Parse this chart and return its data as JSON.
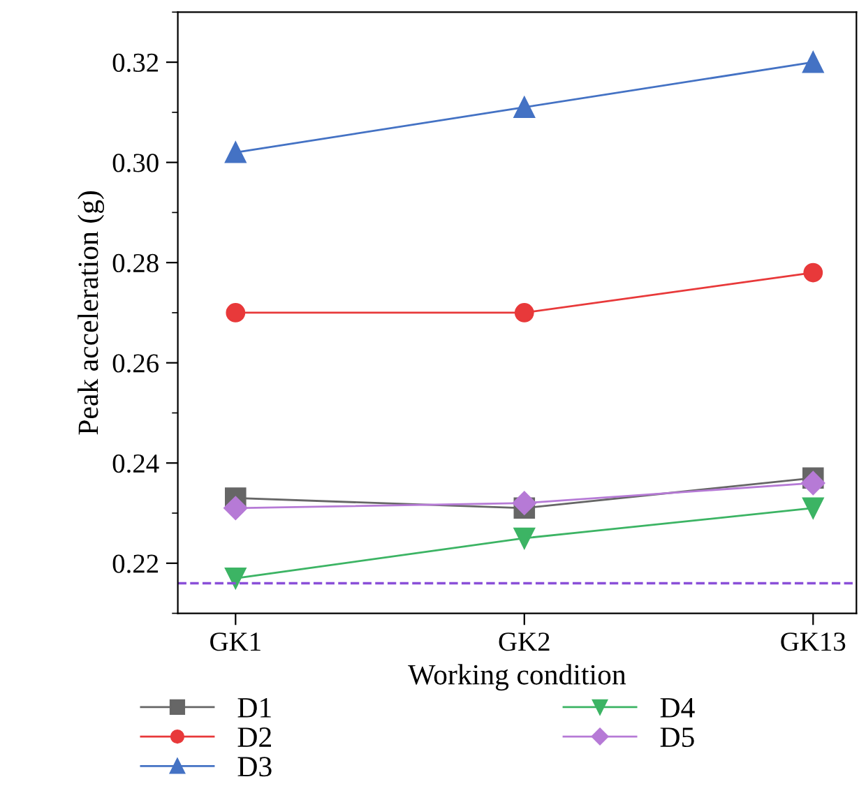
{
  "chart_data": {
    "type": "line",
    "xlabel": "Working condition",
    "ylabel": "Peak acceleration (g)",
    "categories": [
      "GK1",
      "GK2",
      "GK13"
    ],
    "series": [
      {
        "name": "D1",
        "color": "#666666",
        "marker": "square",
        "values": [
          0.233,
          0.231,
          0.237
        ]
      },
      {
        "name": "D2",
        "color": "#e8393a",
        "marker": "circle",
        "values": [
          0.27,
          0.27,
          0.278
        ]
      },
      {
        "name": "D3",
        "color": "#4472c4",
        "marker": "triangle",
        "values": [
          0.302,
          0.311,
          0.32
        ]
      },
      {
        "name": "D4",
        "color": "#3cb464",
        "marker": "triangle-down",
        "values": [
          0.217,
          0.225,
          0.231
        ]
      },
      {
        "name": "D5",
        "color": "#b67ad6",
        "marker": "diamond",
        "values": [
          0.231,
          0.232,
          0.236
        ]
      }
    ],
    "ylim": [
      0.21,
      0.33
    ],
    "yticks": [
      {
        "value": 0.22,
        "label": "0.22"
      },
      {
        "value": 0.24,
        "label": "0.24"
      },
      {
        "value": 0.26,
        "label": "0.26"
      },
      {
        "value": 0.28,
        "label": "0.28"
      },
      {
        "value": 0.3,
        "label": "0.30"
      },
      {
        "value": 0.32,
        "label": "0.32"
      }
    ],
    "ref_lines": [
      {
        "axis": "y",
        "value": 0.216,
        "color": "#8a4fd8",
        "line_style": "dashed"
      }
    ],
    "legend": "bottom",
    "grid": false
  }
}
